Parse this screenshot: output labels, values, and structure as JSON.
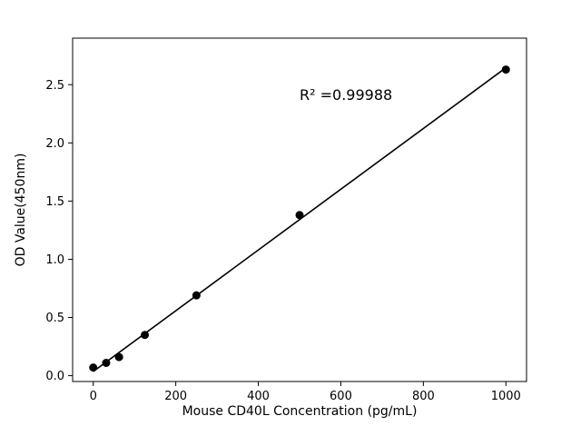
{
  "figure": {
    "background": "#ffffff"
  },
  "chart_data": {
    "type": "scatter",
    "title": "",
    "xlabel": "Mouse CD40L Concentration (pg/mL)",
    "ylabel": "OD Value(450nm)",
    "x": [
      0,
      31.25,
      62.5,
      125,
      250,
      500,
      1000
    ],
    "y": [
      0.07,
      0.11,
      0.16,
      0.35,
      0.69,
      1.38,
      2.63
    ],
    "fit_line": true,
    "xticks": [
      0,
      200,
      400,
      600,
      800,
      1000
    ],
    "xtick_labels": [
      "0",
      "200",
      "400",
      "600",
      "800",
      "1000"
    ],
    "yticks": [
      0.0,
      0.5,
      1.0,
      1.5,
      2.0,
      2.5
    ],
    "ytick_labels": [
      "0.0",
      "0.5",
      "1.0",
      "1.5",
      "2.0",
      "2.5"
    ],
    "xlim": [
      -50,
      1050
    ],
    "ylim": [
      -0.05,
      2.9
    ],
    "grid": false,
    "legend": "none",
    "annotation": "R² =0.99988",
    "annotation_xy": [
      500,
      2.37
    ],
    "marker_color": "#000000",
    "line_color": "#000000",
    "axis_color": "#000000"
  }
}
